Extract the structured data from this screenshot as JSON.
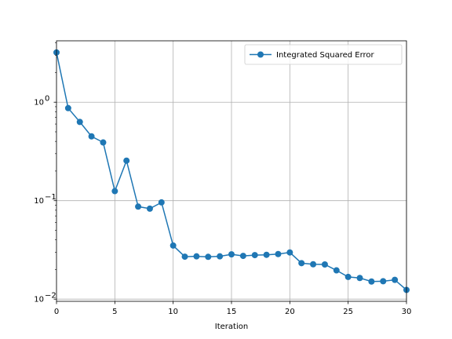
{
  "chart_data": {
    "type": "line",
    "title": "",
    "xlabel": "Iteration",
    "ylabel": "",
    "yscale": "log",
    "xlim": [
      0,
      30
    ],
    "ylim": [
      0.0095,
      4.2
    ],
    "grid": true,
    "legend_position": "top-right",
    "x_ticks": [
      0,
      5,
      10,
      15,
      20,
      25,
      30
    ],
    "y_ticks": [
      {
        "value": 0.01,
        "base": "10",
        "exp": "−2"
      },
      {
        "value": 0.1,
        "base": "10",
        "exp": "−1"
      },
      {
        "value": 1,
        "base": "10",
        "exp": "0"
      }
    ],
    "series": [
      {
        "name": "Integrated Squared Error",
        "color": "#1f77b4",
        "marker": "circle",
        "x": [
          0,
          1,
          2,
          3,
          4,
          5,
          6,
          7,
          8,
          9,
          10,
          11,
          12,
          13,
          14,
          15,
          16,
          17,
          18,
          19,
          20,
          21,
          22,
          23,
          24,
          25,
          26,
          27,
          28,
          29,
          30
        ],
        "values": [
          3.2,
          0.87,
          0.63,
          0.45,
          0.39,
          0.125,
          0.255,
          0.087,
          0.083,
          0.096,
          0.035,
          0.027,
          0.0272,
          0.0269,
          0.0272,
          0.0285,
          0.0275,
          0.028,
          0.0282,
          0.0287,
          0.0298,
          0.0232,
          0.0226,
          0.0225,
          0.0196,
          0.0168,
          0.0164,
          0.0151,
          0.0152,
          0.0157,
          0.0124
        ]
      }
    ]
  }
}
